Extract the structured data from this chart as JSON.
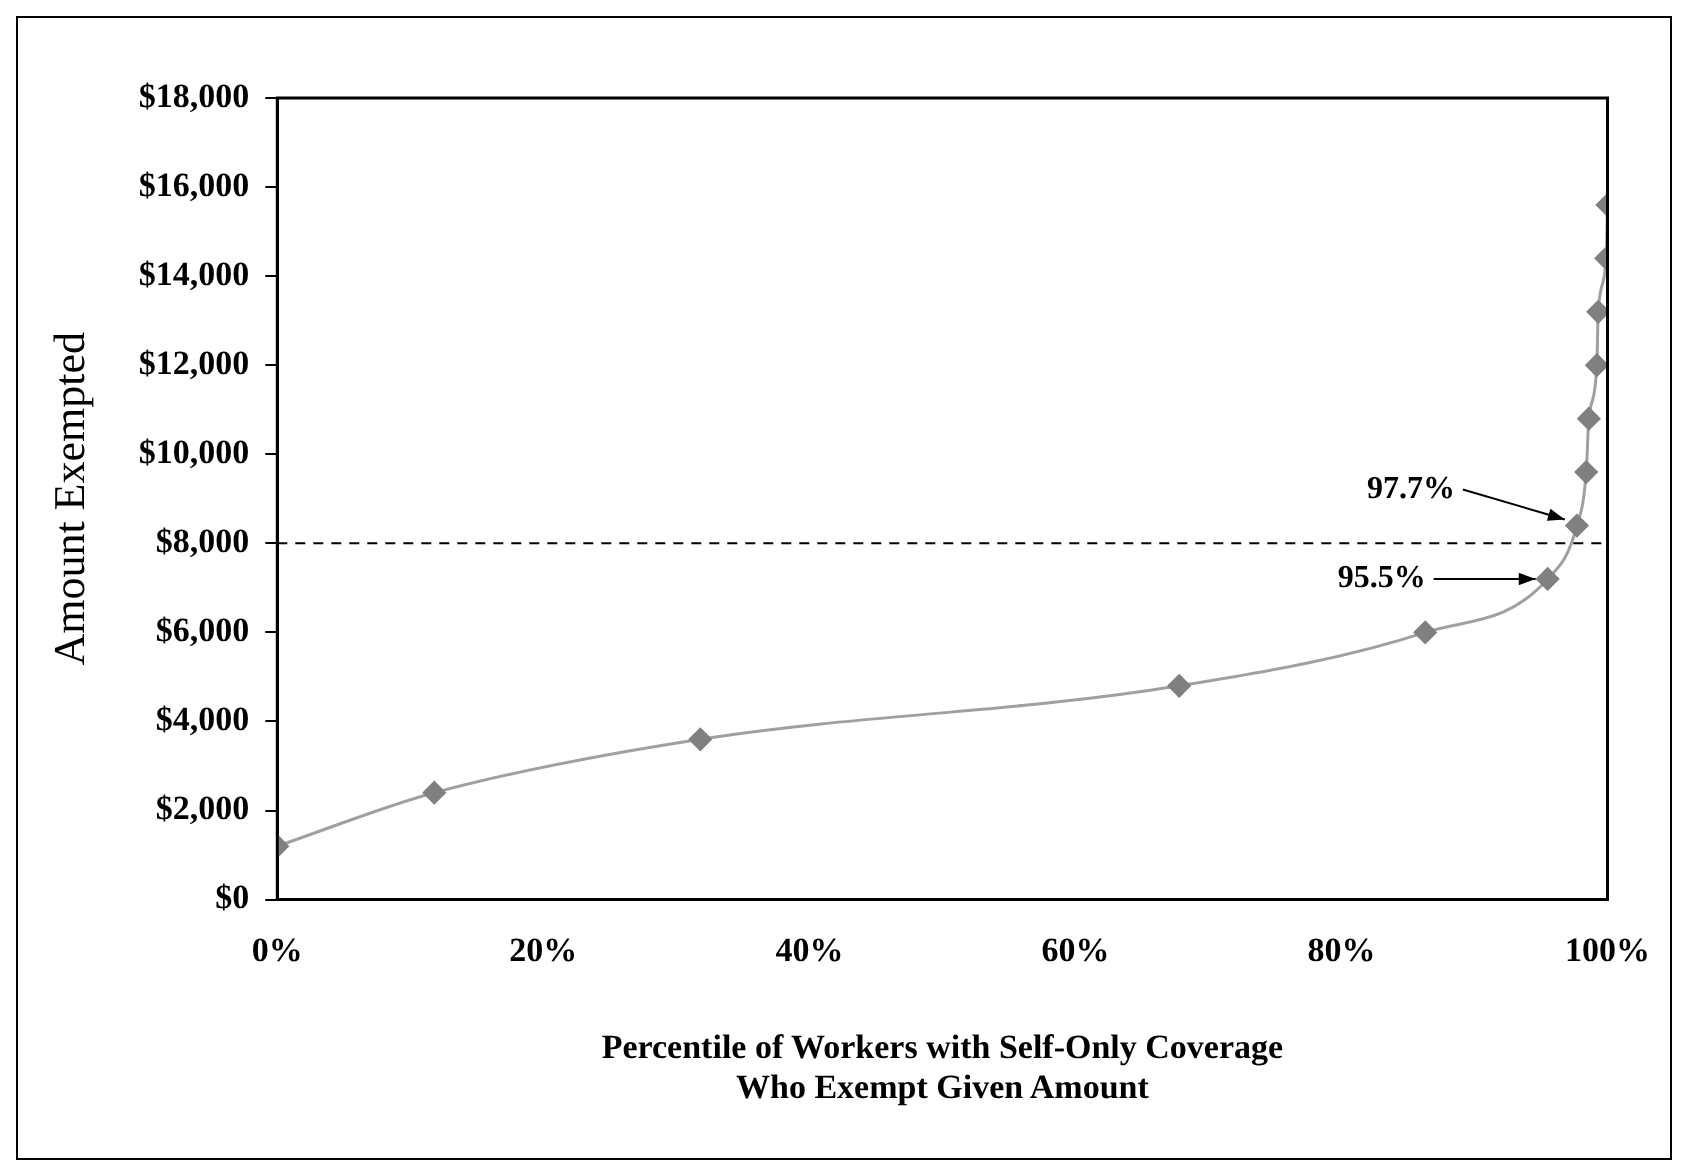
{
  "chart_data": {
    "type": "line",
    "xlabel": "Percentile of Workers with Self-Only Coverage\nWho Exempt Given Amount",
    "ylabel": "Amount Exempted",
    "x": [
      0,
      11.8,
      31.8,
      67.8,
      86.3,
      95.5,
      97.7,
      98.4,
      98.6,
      99.2,
      99.3,
      99.9,
      100
    ],
    "series": [
      {
        "color": "#808080",
        "values": [
          1200,
          2400,
          3600,
          4800,
          6000,
          7200,
          8400,
          9600,
          10800,
          12000,
          13200,
          14400,
          15600
        ]
      }
    ],
    "xlim": [
      0,
      100
    ],
    "xticks": [
      {
        "value": 0,
        "label": "0%"
      },
      {
        "value": 20,
        "label": "20%"
      },
      {
        "value": 40,
        "label": "40%"
      },
      {
        "value": 60,
        "label": "60%"
      },
      {
        "value": 80,
        "label": "80%"
      },
      {
        "value": 100,
        "label": "100%"
      }
    ],
    "ylim": [
      0,
      18000
    ],
    "yticks": [
      {
        "value": 0,
        "label": "$0"
      },
      {
        "value": 2000,
        "label": "$2,000"
      },
      {
        "value": 4000,
        "label": "$4,000"
      },
      {
        "value": 6000,
        "label": "$6,000"
      },
      {
        "value": 8000,
        "label": "$8,000"
      },
      {
        "value": 10000,
        "label": "$10,000"
      },
      {
        "value": 12000,
        "label": "$12,000"
      },
      {
        "value": 14000,
        "label": "$14,000"
      },
      {
        "value": 16000,
        "label": "$16,000"
      },
      {
        "value": 18000,
        "label": "$18,000"
      }
    ],
    "ref_lines": [
      {
        "axis": "y",
        "value": 8000,
        "color": "#000000",
        "line_style": "dashed"
      }
    ],
    "annotations": [
      {
        "text": "97.7%",
        "x": 97.7,
        "y": 8400
      },
      {
        "text": "95.5%",
        "x": 95.5,
        "y": 7200
      }
    ],
    "marker": "diamond",
    "line_style": "solid",
    "grid": false,
    "legend": false
  }
}
